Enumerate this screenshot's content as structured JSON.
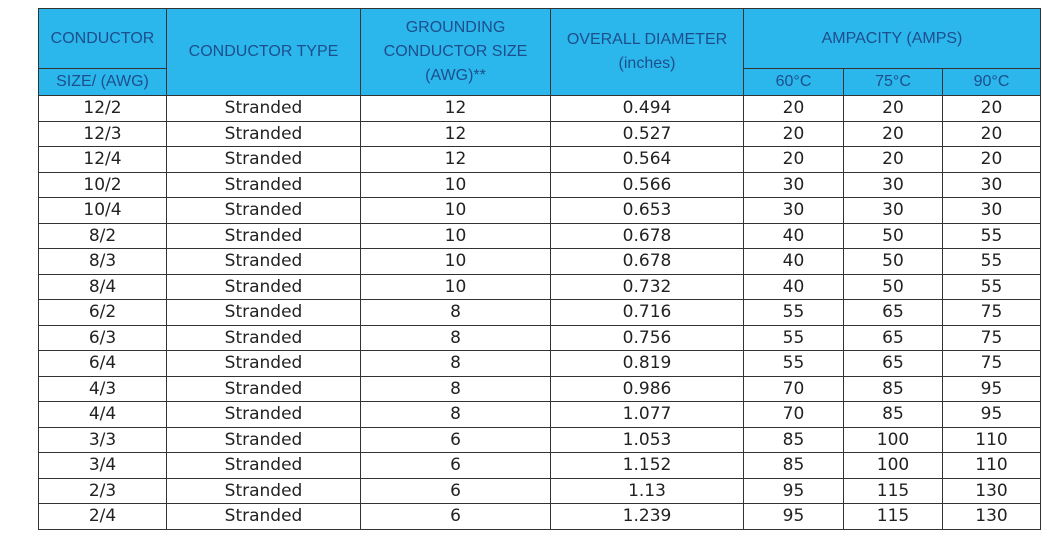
{
  "header": {
    "size_top": "CONDUCTOR",
    "size_bottom": "SIZE/ (AWG)",
    "type": "CONDUCTOR TYPE",
    "grounding": "GROUNDING CONDUCTOR SIZE (AWG)**",
    "diameter": "OVERALL DIAMETER (inches)",
    "ampacity": "AMPACITY (AMPS)",
    "temps": [
      "60°C",
      "75°C",
      "90°C"
    ]
  },
  "table": {
    "rows": [
      [
        "12/2",
        "Stranded",
        "12",
        "0.494",
        "20",
        "20",
        "20"
      ],
      [
        "12/3",
        "Stranded",
        "12",
        "0.527",
        "20",
        "20",
        "20"
      ],
      [
        "12/4",
        "Stranded",
        "12",
        "0.564",
        "20",
        "20",
        "20"
      ],
      [
        "10/2",
        "Stranded",
        "10",
        "0.566",
        "30",
        "30",
        "30"
      ],
      [
        "10/4",
        "Stranded",
        "10",
        "0.653",
        "30",
        "30",
        "30"
      ],
      [
        "8/2",
        "Stranded",
        "10",
        "0.678",
        "40",
        "50",
        "55"
      ],
      [
        "8/3",
        "Stranded",
        "10",
        "0.678",
        "40",
        "50",
        "55"
      ],
      [
        "8/4",
        "Stranded",
        "10",
        "0.732",
        "40",
        "50",
        "55"
      ],
      [
        "6/2",
        "Stranded",
        "8",
        "0.716",
        "55",
        "65",
        "75"
      ],
      [
        "6/3",
        "Stranded",
        "8",
        "0.756",
        "55",
        "65",
        "75"
      ],
      [
        "6/4",
        "Stranded",
        "8",
        "0.819",
        "55",
        "65",
        "75"
      ],
      [
        "4/3",
        "Stranded",
        "8",
        "0.986",
        "70",
        "85",
        "95"
      ],
      [
        "4/4",
        "Stranded",
        "8",
        "1.077",
        "70",
        "85",
        "95"
      ],
      [
        "3/3",
        "Stranded",
        "6",
        "1.053",
        "85",
        "100",
        "110"
      ],
      [
        "3/4",
        "Stranded",
        "6",
        "1.152",
        "85",
        "100",
        "110"
      ],
      [
        "2/3",
        "Stranded",
        "6",
        "1.13",
        "95",
        "115",
        "130"
      ],
      [
        "2/4",
        "Stranded",
        "6",
        "1.239",
        "95",
        "115",
        "130"
      ]
    ]
  }
}
